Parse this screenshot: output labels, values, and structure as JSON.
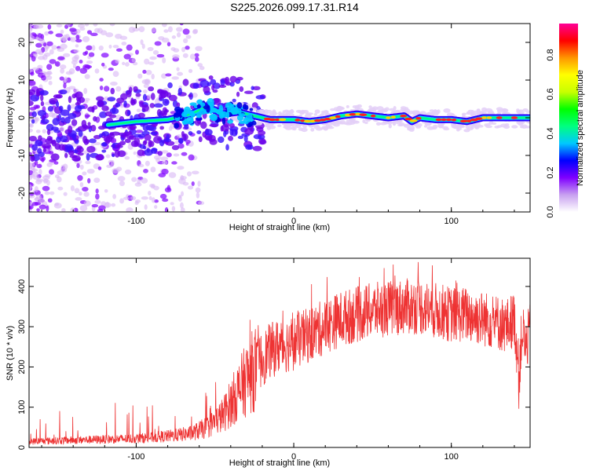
{
  "title": "S225.2026.099.17.31.R14",
  "chart_data": [
    {
      "type": "scatter",
      "subtype": "spectrogram",
      "xlabel": "Height of straight line (km)",
      "ylabel": "Frequency (Hz)",
      "xlim": [
        -168,
        150
      ],
      "ylim": [
        -25,
        25
      ],
      "xticks": [
        -100,
        0,
        100
      ],
      "yticks": [
        -20,
        -10,
        0,
        10,
        20
      ],
      "colorbar": {
        "label": "Normalized spectral amplitude",
        "ticks": [
          "0.0",
          "0.2",
          "0.4",
          "0.6",
          "0.8"
        ],
        "colors": [
          "#ffffff",
          "#c8a0f0",
          "#7f00ff",
          "#0000ff",
          "#00c8ff",
          "#00ff80",
          "#00ff00",
          "#c8ff00",
          "#ffff00",
          "#ff9600",
          "#ff0000",
          "#ff0096"
        ]
      },
      "ridge": {
        "x": [
          -120,
          -100,
          -80,
          -65,
          -55,
          -45,
          -35,
          -25,
          -15,
          -5,
          0,
          10,
          20,
          30,
          40,
          50,
          60,
          70,
          75,
          80,
          90,
          100,
          110,
          120,
          130,
          150
        ],
        "y": [
          -2,
          -1,
          -0.5,
          1,
          3,
          1,
          1.5,
          0.5,
          -0.5,
          -0.5,
          -0.5,
          -1,
          -0.5,
          0.5,
          1,
          0.5,
          0,
          0.5,
          -1,
          0,
          -0.5,
          -0.5,
          -1,
          0,
          0,
          0
        ]
      }
    },
    {
      "type": "line",
      "xlabel": "Height of straight line (km)",
      "ylabel": "SNR (10 * v/v)",
      "xlim": [
        -168,
        150
      ],
      "ylim": [
        0,
        470
      ],
      "xticks": [
        -100,
        0,
        100
      ],
      "yticks": [
        0,
        100,
        200,
        300,
        400
      ],
      "series": [
        {
          "name": "SNR",
          "color": "#ee3333",
          "x": [
            -168,
            -140,
            -120,
            -100,
            -80,
            -65,
            -55,
            -45,
            -40,
            -35,
            -30,
            -25,
            -20,
            -15,
            -10,
            -5,
            0,
            10,
            20,
            30,
            40,
            50,
            60,
            70,
            80,
            90,
            100,
            110,
            120,
            130,
            135,
            140,
            143,
            145,
            147,
            150
          ],
          "y": [
            15,
            18,
            20,
            22,
            28,
            35,
            50,
            80,
            110,
            140,
            170,
            195,
            220,
            240,
            250,
            255,
            260,
            280,
            300,
            320,
            330,
            340,
            345,
            350,
            350,
            340,
            330,
            330,
            320,
            310,
            300,
            320,
            180,
            300,
            250,
            290
          ]
        }
      ]
    }
  ]
}
